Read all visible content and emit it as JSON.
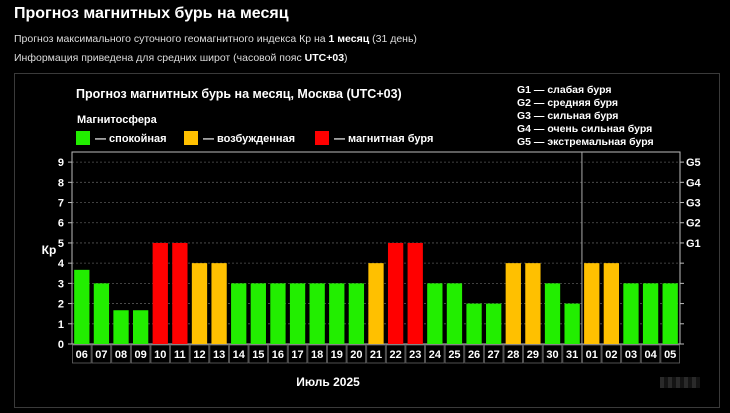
{
  "header": {
    "title": "Прогноз магнитных бурь на месяц",
    "line1_prefix": "Прогноз максимального суточного геомагнитного индекса Кр на ",
    "line1_bold": "1 месяц",
    "line1_suffix": " (31 день)",
    "line2_prefix": "Информация приведена для средних широт (часовой пояс ",
    "line2_bold": "UTC+03",
    "line2_suffix": ")"
  },
  "chart_data": {
    "type": "bar",
    "title": "Прогноз магнитных бурь на месяц, Москва (UTC+03)",
    "xlabel": "Июль 2025",
    "ylabel": "Кр",
    "ylim": [
      0,
      9.5
    ],
    "yticks": [
      "0",
      "1",
      "2",
      "3",
      "4",
      "5",
      "6",
      "7",
      "8",
      "9"
    ],
    "storm_levels": [
      {
        "label": "G1",
        "kp": 5
      },
      {
        "label": "G2",
        "kp": 6
      },
      {
        "label": "G3",
        "kp": 7
      },
      {
        "label": "G4",
        "kp": 8
      },
      {
        "label": "G5",
        "kp": 9
      }
    ],
    "storm_legend": [
      "G1 — слабая буря",
      "G2 — средняя буря",
      "G3 — сильная буря",
      "G4 — очень сильная буря",
      "G5 — экстремальная буря"
    ],
    "legend_title": "Магнитосфера",
    "legend": [
      {
        "label": "— спокойная",
        "color": "#22ee00"
      },
      {
        "label": "— возбужденная",
        "color": "#ffc000"
      },
      {
        "label": "— магнитная буря",
        "color": "#ff0000"
      }
    ],
    "categories": [
      "06",
      "07",
      "08",
      "09",
      "10",
      "11",
      "12",
      "13",
      "14",
      "15",
      "16",
      "17",
      "18",
      "19",
      "20",
      "21",
      "22",
      "23",
      "24",
      "25",
      "26",
      "27",
      "28",
      "29",
      "30",
      "31",
      "01",
      "02",
      "03",
      "04",
      "05"
    ],
    "values": [
      3.67,
      3,
      1.67,
      1.67,
      5,
      5,
      4,
      4,
      3,
      3,
      3,
      3,
      3,
      3,
      3,
      4,
      5,
      5,
      3,
      3,
      2,
      2,
      4,
      4,
      3,
      2,
      4,
      4,
      3,
      3,
      3
    ],
    "status": [
      "calm",
      "calm",
      "calm",
      "calm",
      "storm",
      "storm",
      "active",
      "active",
      "calm",
      "calm",
      "calm",
      "calm",
      "calm",
      "calm",
      "calm",
      "active",
      "storm",
      "storm",
      "calm",
      "calm",
      "calm",
      "calm",
      "active",
      "active",
      "calm",
      "calm",
      "active",
      "active",
      "calm",
      "calm",
      "calm"
    ],
    "month_divider_after_index": 25
  }
}
